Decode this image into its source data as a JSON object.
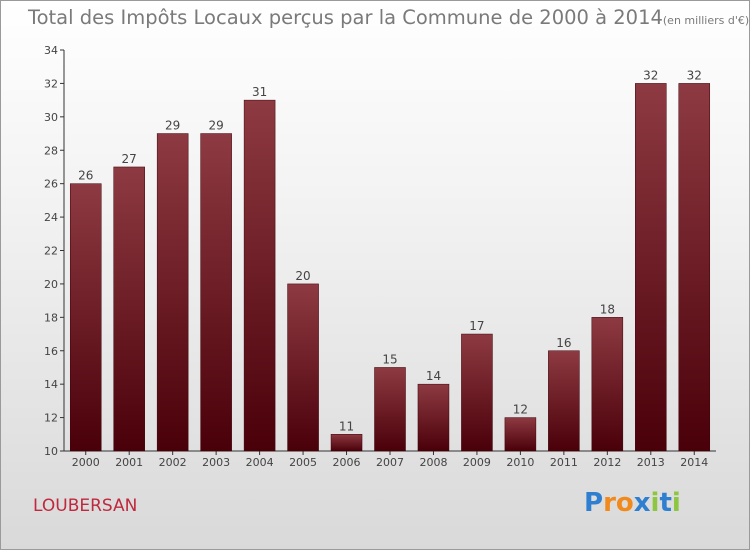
{
  "title": {
    "main": "Total des Impôts Locaux perçus par la Commune de 2000 à 2014",
    "unit": "(en milliers d'€)"
  },
  "commune": "LOUBERSAN",
  "logo": {
    "letters": [
      "P",
      "r",
      "o",
      "x",
      "i",
      "t",
      "i"
    ],
    "colors": [
      "#2f7fd0",
      "#f08a1c",
      "#f08a1c",
      "#2f7fd0",
      "#8dc63f",
      "#2f7fd0",
      "#8dc63f"
    ]
  },
  "colors": {
    "bar_top": "#8e3a42",
    "bar_bottom": "#4a0009",
    "axis": "#333333",
    "label": "#444444"
  },
  "chart_data": {
    "type": "bar",
    "categories": [
      "2000",
      "2001",
      "2002",
      "2003",
      "2004",
      "2005",
      "2006",
      "2007",
      "2008",
      "2009",
      "2010",
      "2011",
      "2012",
      "2013",
      "2014"
    ],
    "values": [
      26,
      27,
      29,
      29,
      31,
      20,
      11,
      15,
      14,
      17,
      12,
      16,
      18,
      32,
      32
    ],
    "ylim": [
      10,
      34
    ],
    "yticks": [
      10,
      12,
      14,
      16,
      18,
      20,
      22,
      24,
      26,
      28,
      30,
      32,
      34
    ],
    "grid": false,
    "legend": "none"
  }
}
